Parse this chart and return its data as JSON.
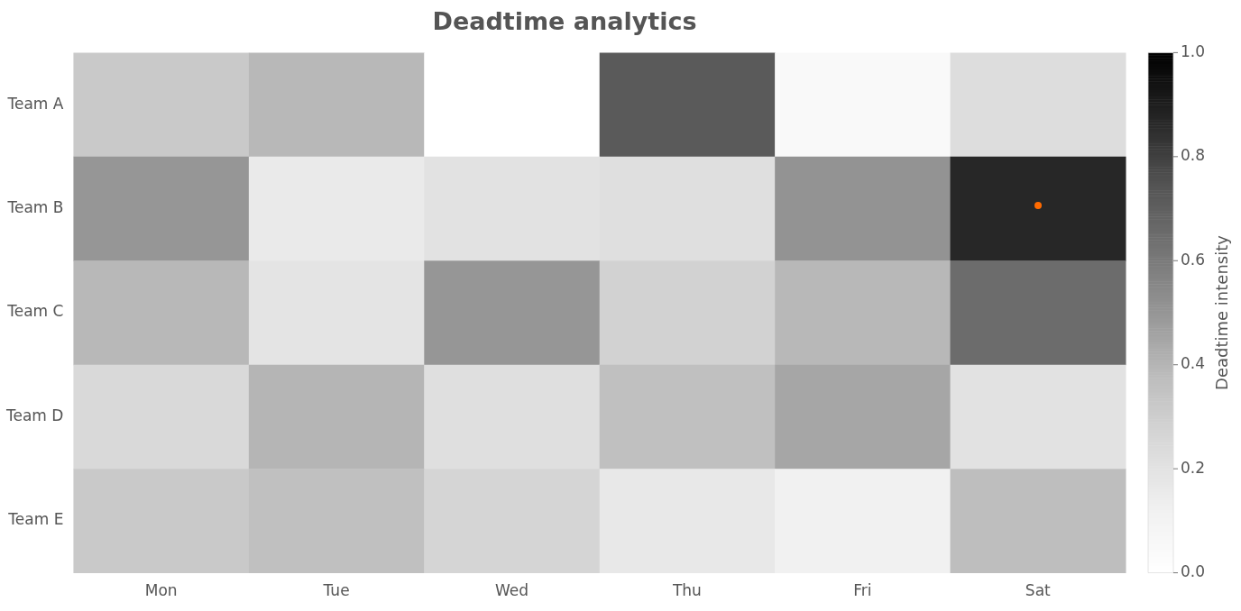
{
  "chart_data": {
    "type": "heatmap",
    "title": "Deadtime analytics",
    "clabel": "Deadtime intensity",
    "categories": [
      "Mon",
      "Tue",
      "Wed",
      "Thu",
      "Fri",
      "Sat"
    ],
    "y_categories": [
      "Team A",
      "Team B",
      "Team C",
      "Team D",
      "Team E"
    ],
    "cells": [
      [
        0.32,
        0.39,
        0.0,
        0.72,
        0.05,
        0.23
      ],
      [
        0.5,
        0.16,
        0.2,
        0.22,
        0.51,
        0.87
      ],
      [
        0.39,
        0.19,
        0.5,
        0.28,
        0.39,
        0.65
      ],
      [
        0.25,
        0.4,
        0.22,
        0.36,
        0.45,
        0.2
      ],
      [
        0.32,
        0.36,
        0.27,
        0.17,
        0.12,
        0.37
      ]
    ],
    "clim": [
      0,
      1
    ],
    "cticks": [
      {
        "value": 0,
        "label": "0.0"
      },
      0.2,
      0.4,
      0.6,
      0.8,
      {
        "value": 1,
        "label": "1.0"
      }
    ]
  }
}
